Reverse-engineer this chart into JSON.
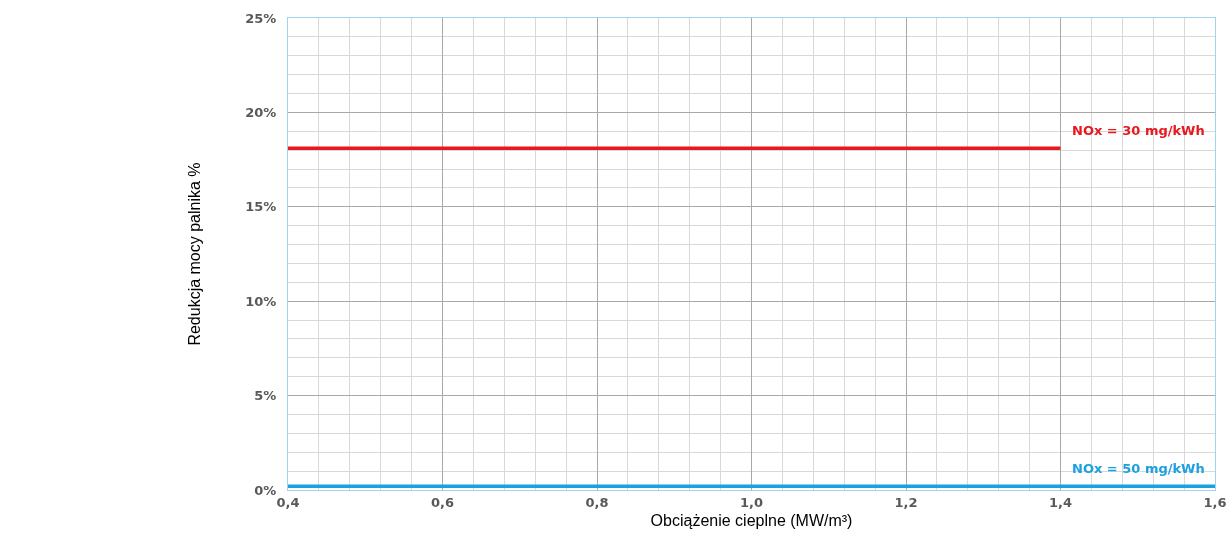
{
  "chart_data": {
    "type": "line",
    "xlabel": "Obciążenie cieplne (MW/m³)",
    "ylabel": "Redukcja mocy palnika %",
    "xlim": [
      0.4,
      1.6
    ],
    "ylim": [
      0,
      25
    ],
    "xticks": [
      {
        "value": 0.4,
        "label": "0,4"
      },
      {
        "value": 0.6,
        "label": "0,6"
      },
      {
        "value": 0.8,
        "label": "0,8"
      },
      {
        "value": 1.0,
        "label": "1,0"
      },
      {
        "value": 1.2,
        "label": "1,2"
      },
      {
        "value": 1.4,
        "label": "1,4"
      },
      {
        "value": 1.6,
        "label": "1,6"
      }
    ],
    "yticks": [
      {
        "value": 0,
        "label": "0%"
      },
      {
        "value": 5,
        "label": "5%"
      },
      {
        "value": 10,
        "label": "10%"
      },
      {
        "value": 15,
        "label": "15%"
      },
      {
        "value": 20,
        "label": "20%"
      },
      {
        "value": 25,
        "label": "25%"
      }
    ],
    "grid": true,
    "legend": false,
    "marker": "none",
    "line_style": "solid",
    "series": [
      {
        "name": "NOx = 30 mg/kWh",
        "color": "#e8181e",
        "x": [
          0.4,
          1.4
        ],
        "values": [
          18.1,
          18.1
        ]
      },
      {
        "name": "NOx = 50 mg/kWh",
        "color": "#1ba1e2",
        "x": [
          0.4,
          1.6
        ],
        "values": [
          0.2,
          0.2
        ]
      }
    ]
  }
}
